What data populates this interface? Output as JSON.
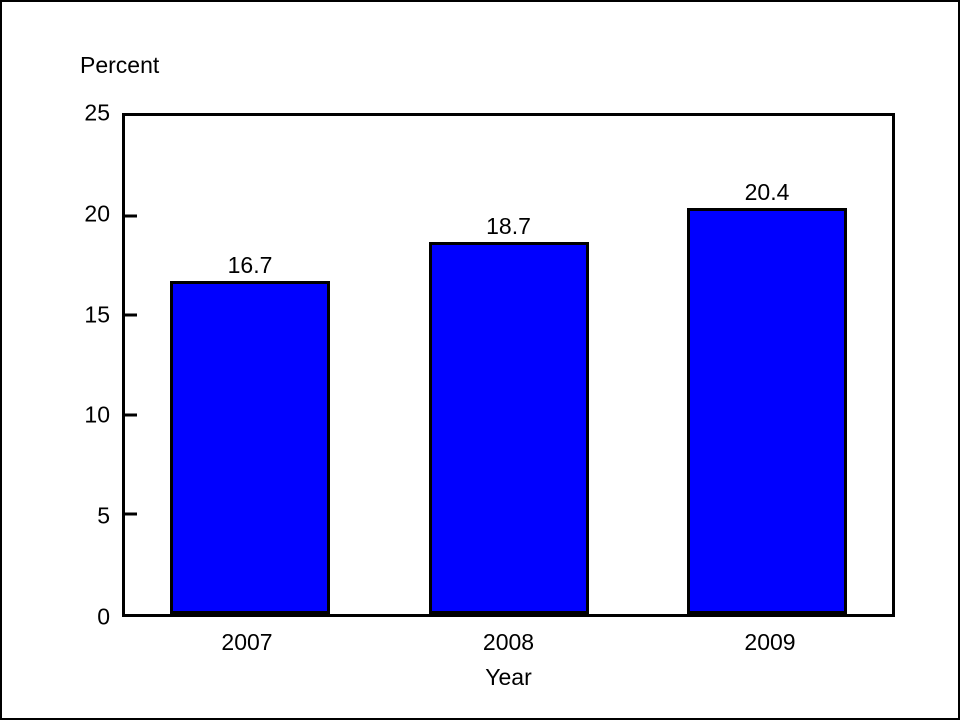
{
  "chart_data": {
    "type": "bar",
    "ylabel": "Percent",
    "xlabel": "Year",
    "categories": [
      "2007",
      "2008",
      "2009"
    ],
    "values": [
      16.7,
      18.7,
      20.4
    ],
    "bar_labels": [
      "16.7",
      "18.7",
      "20.4"
    ],
    "ylim": [
      0,
      25
    ],
    "yticks": [
      0,
      5,
      10,
      15,
      20,
      25
    ],
    "bar_color": "#0000ff",
    "bar_border_color": "#000000",
    "frame_color": "#000000",
    "grid": false,
    "legend": "none"
  }
}
